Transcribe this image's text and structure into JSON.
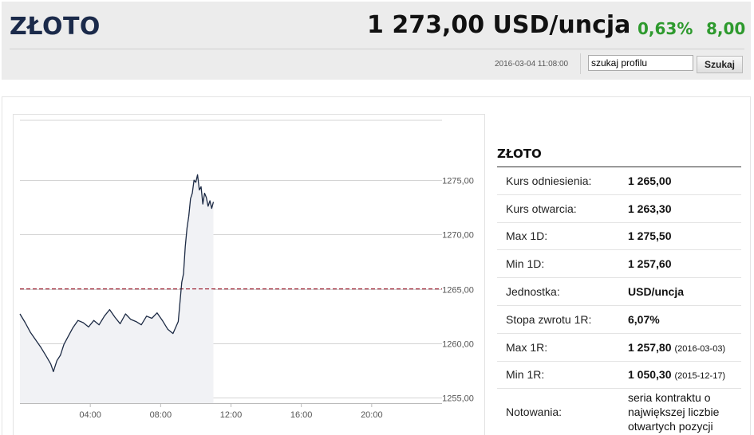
{
  "header": {
    "title": "ZŁOTO",
    "price": "1 273,00 USD/uncja",
    "change_pct": "0,63%",
    "change_abs": "8,00",
    "timestamp": "2016-03-04 11:08:00",
    "search_value": "szukaj profilu",
    "search_button": "Szukaj"
  },
  "colors": {
    "positive": "#2e9a2e",
    "line": "#1c2a44",
    "reference": "#a12a3a",
    "area": "#f1f2f5"
  },
  "info": {
    "title": "ZŁOTO",
    "rows": [
      {
        "label": "Kurs odniesienia:",
        "value": "1 265,00",
        "date": ""
      },
      {
        "label": "Kurs otwarcia:",
        "value": "1 263,30",
        "date": ""
      },
      {
        "label": "Max 1D:",
        "value": "1 275,50",
        "date": ""
      },
      {
        "label": "Min 1D:",
        "value": "1 257,60",
        "date": ""
      },
      {
        "label": "Jednostka:",
        "value": "USD/uncja",
        "date": ""
      },
      {
        "label": "Stopa zwrotu 1R:",
        "value": "6,07%",
        "date": ""
      },
      {
        "label": "Max 1R:",
        "value": "1 257,80",
        "date": "(2016-03-03)"
      },
      {
        "label": "Min 1R:",
        "value": "1 050,30",
        "date": "(2015-12-17)"
      },
      {
        "label": "Notowania:",
        "value": "seria kontraktu o największej liczbie otwartych pozycji",
        "date": ""
      }
    ]
  },
  "chart_data": {
    "type": "line",
    "title": "",
    "xlabel": "",
    "ylabel": "",
    "x_ticks": [
      "04:00",
      "08:00",
      "12:00",
      "16:00",
      "20:00"
    ],
    "y_ticks": [
      "1255,00",
      "1260,00",
      "1265,00",
      "1270,00",
      "1275,00"
    ],
    "x_range_hours": [
      0,
      24
    ],
    "ylim": [
      1254.5,
      1280.5
    ],
    "reference_line": 1265.0,
    "grid": "horizontal",
    "series": [
      {
        "x": [
          0.0,
          0.3,
          0.6,
          0.9,
          1.2,
          1.5,
          1.75,
          1.9,
          2.1,
          2.3,
          2.5,
          2.7,
          3.0,
          3.3,
          3.6,
          3.9,
          4.2,
          4.5,
          4.8,
          5.1,
          5.4,
          5.7,
          6.0,
          6.3,
          6.6,
          6.9,
          7.2,
          7.5,
          7.8,
          8.1,
          8.4,
          8.7,
          9.0,
          9.2,
          9.3,
          9.4,
          9.5,
          9.6,
          9.7,
          9.8,
          9.9,
          10.0,
          10.1,
          10.2,
          10.3,
          10.4,
          10.5,
          10.6,
          10.7,
          10.8,
          10.9,
          11.0
        ],
        "values": [
          1262.7,
          1261.9,
          1261.0,
          1260.3,
          1259.6,
          1258.8,
          1258.1,
          1257.4,
          1258.4,
          1258.9,
          1259.9,
          1260.5,
          1261.4,
          1262.1,
          1261.9,
          1261.5,
          1262.1,
          1261.7,
          1262.5,
          1263.1,
          1262.4,
          1261.8,
          1262.7,
          1262.2,
          1262.0,
          1261.7,
          1262.5,
          1262.3,
          1262.8,
          1262.1,
          1261.3,
          1260.9,
          1262.0,
          1265.6,
          1266.4,
          1268.9,
          1270.6,
          1271.7,
          1273.3,
          1273.8,
          1275.0,
          1274.8,
          1275.5,
          1274.1,
          1274.4,
          1272.8,
          1273.8,
          1273.4,
          1272.6,
          1273.1,
          1272.4,
          1273.0
        ]
      }
    ]
  }
}
